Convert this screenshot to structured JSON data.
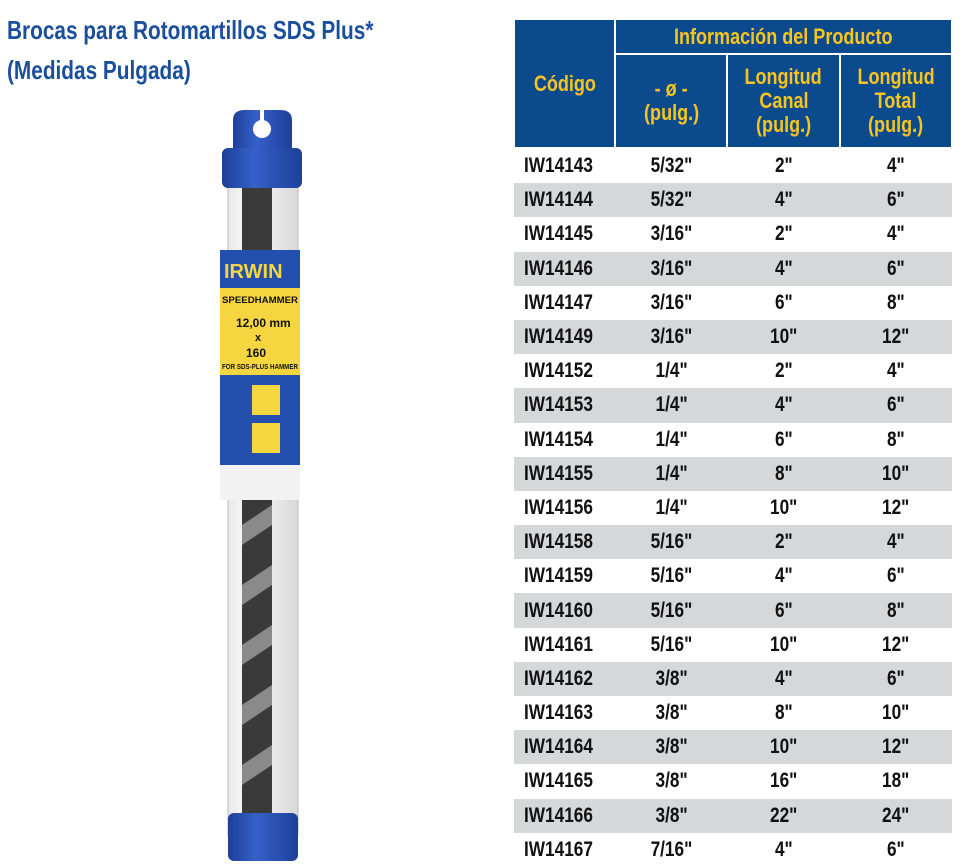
{
  "title": {
    "line1": "Brocas para Rotomartillos SDS Plus*",
    "line2": "(Medidas Pulgada)"
  },
  "product_image": {
    "brand": "IRWIN",
    "label_line1": "SPEEDHAMMER",
    "label_line2": "12,00 mm",
    "label_line3": "x",
    "label_line4": "160",
    "label_line5": "FOR SDS-PLUS HAMMER",
    "cap_color": "#2a55b8",
    "label_color": "#f6d640"
  },
  "table": {
    "header_code": "Código",
    "header_group": "Información del Producto",
    "header_diameter": [
      "- ø -",
      "(pulg.)"
    ],
    "header_canal": [
      "Longitud",
      "Canal",
      "(pulg.)"
    ],
    "header_total": [
      "Longitud",
      "Total",
      "(pulg.)"
    ],
    "rows": [
      [
        "IW14143",
        "5/32\"",
        "2\"",
        "4\""
      ],
      [
        "IW14144",
        "5/32\"",
        "4\"",
        "6\""
      ],
      [
        "IW14145",
        "3/16\"",
        "2\"",
        "4\""
      ],
      [
        "IW14146",
        "3/16\"",
        "4\"",
        "6\""
      ],
      [
        "IW14147",
        "3/16\"",
        "6\"",
        "8\""
      ],
      [
        "IW14149",
        "3/16\"",
        "10\"",
        "12\""
      ],
      [
        "IW14152",
        "1/4\"",
        "2\"",
        "4\""
      ],
      [
        "IW14153",
        "1/4\"",
        "4\"",
        "6\""
      ],
      [
        "IW14154",
        "1/4\"",
        "6\"",
        "8\""
      ],
      [
        "IW14155",
        "1/4\"",
        "8\"",
        "10\""
      ],
      [
        "IW14156",
        "1/4\"",
        "10\"",
        "12\""
      ],
      [
        "IW14158",
        "5/16\"",
        "2\"",
        "4\""
      ],
      [
        "IW14159",
        "5/16\"",
        "4\"",
        "6\""
      ],
      [
        "IW14160",
        "5/16\"",
        "6\"",
        "8\""
      ],
      [
        "IW14161",
        "5/16\"",
        "10\"",
        "12\""
      ],
      [
        "IW14162",
        "3/8\"",
        "4\"",
        "6\""
      ],
      [
        "IW14163",
        "3/8\"",
        "8\"",
        "10\""
      ],
      [
        "IW14164",
        "3/8\"",
        "10\"",
        "12\""
      ],
      [
        "IW14165",
        "3/8\"",
        "16\"",
        "18\""
      ],
      [
        "IW14166",
        "3/8\"",
        "22\"",
        "24\""
      ],
      [
        "IW14167",
        "7/16\"",
        "4\"",
        "6\""
      ]
    ]
  }
}
